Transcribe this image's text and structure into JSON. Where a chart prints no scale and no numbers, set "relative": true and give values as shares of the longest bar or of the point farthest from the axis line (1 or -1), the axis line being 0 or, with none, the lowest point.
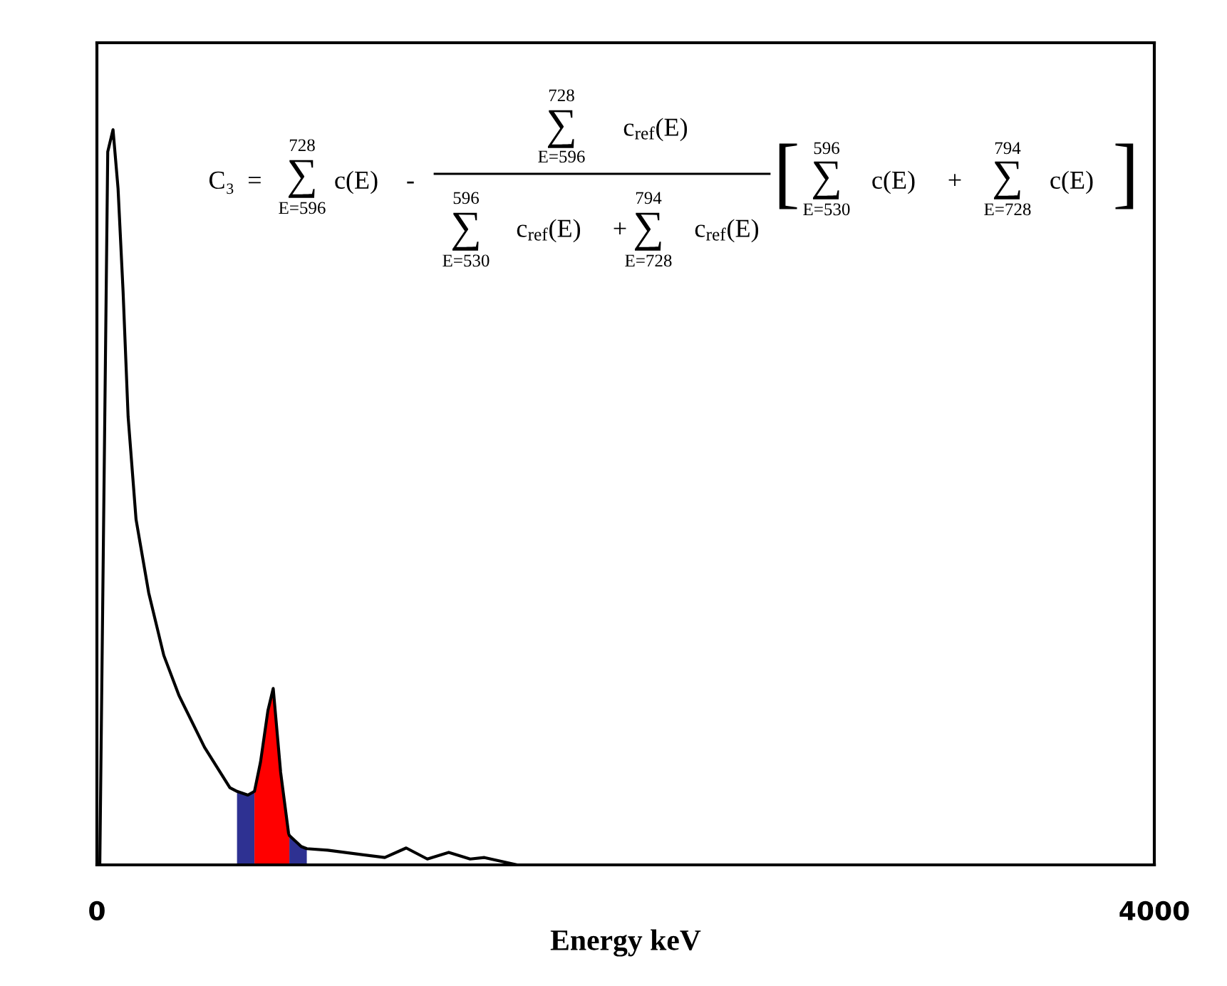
{
  "chart_data": {
    "type": "line",
    "relative": true,
    "xlabel": "Energy keV",
    "xlim": [
      0,
      4000
    ],
    "xticks": [
      0,
      4000
    ],
    "marker": "none",
    "line_style": "solid",
    "series": [
      {
        "type": "area",
        "color": "#2e3192",
        "x": [
          530,
          571,
          596
        ],
        "values": [
          0.1,
          0.095,
          0.1
        ]
      },
      {
        "type": "area",
        "color": "#ff0000",
        "x": [
          596,
          619,
          647,
          667,
          695,
          725,
          728
        ],
        "values": [
          0.1,
          0.14,
          0.21,
          0.24,
          0.126,
          0.043,
          0.04
        ]
      },
      {
        "type": "area",
        "color": "#2e3192",
        "x": [
          728,
          773,
          794
        ],
        "values": [
          0.04,
          0.025,
          0.022
        ]
      },
      {
        "color": "#000000",
        "x": [
          11,
          41,
          61,
          80,
          99,
          118,
          148,
          196,
          253,
          311,
          407,
          503,
          530,
          571,
          596,
          619,
          647,
          667,
          695,
          725,
          728,
          773,
          794,
          873,
          1089,
          1170,
          1250,
          1331,
          1412,
          1466,
          1590,
          4000
        ],
        "values": [
          0,
          0.97,
          1,
          0.92,
          0.78,
          0.61,
          0.47,
          0.37,
          0.285,
          0.23,
          0.16,
          0.105,
          0.1,
          0.095,
          0.1,
          0.14,
          0.21,
          0.24,
          0.126,
          0.043,
          0.04,
          0.025,
          0.022,
          0.02,
          0.01,
          0.023,
          0.008,
          0.017,
          0.008,
          0.01,
          0,
          0
        ]
      }
    ],
    "annotations": [
      "C₃  =",
      "728",
      "∑",
      "E=596",
      "c(E)",
      "-",
      "728",
      "∑",
      "E=596",
      "c$_{ref}$(E)",
      "596",
      "∑",
      "E=530",
      "c$_{ref}$(E)",
      "+",
      "794",
      "∑",
      "E=728",
      "c$_{ref}$(E)",
      "[",
      "596",
      "∑",
      "E=530",
      "c(E)",
      "+",
      "794",
      "∑",
      "E=728",
      "c(E)",
      "]"
    ]
  }
}
